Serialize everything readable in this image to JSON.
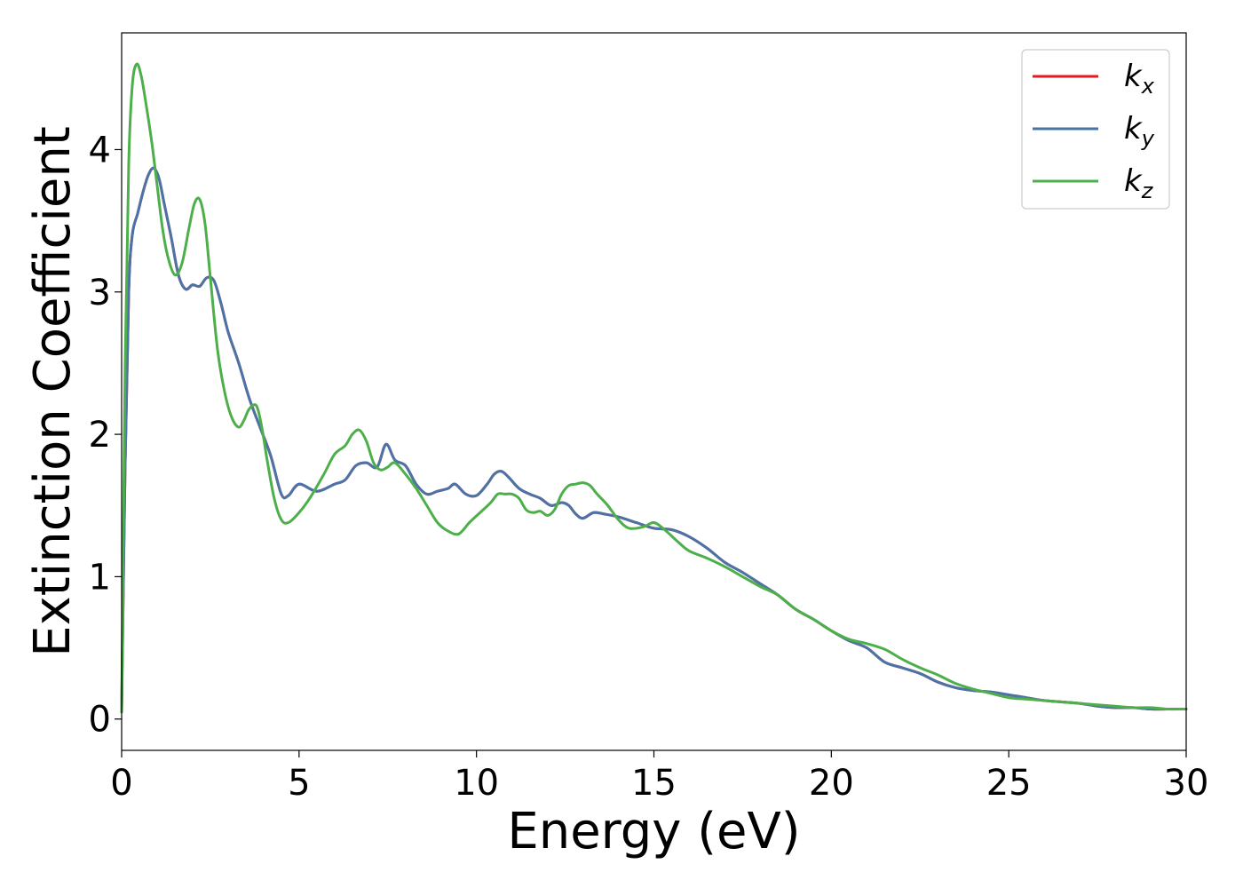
{
  "chart_data": {
    "type": "line",
    "xlabel": "Energy (eV)",
    "ylabel": "Extinction Coefficient",
    "xlim": [
      0,
      30
    ],
    "ylim": [
      -0.22,
      4.82
    ],
    "xticks": [
      0,
      5,
      10,
      15,
      20,
      25,
      30
    ],
    "xtick_labels": [
      "0",
      "5",
      "10",
      "15",
      "20",
      "25",
      "30"
    ],
    "yticks": [
      0,
      1,
      2,
      3,
      4
    ],
    "ytick_labels": [
      "0",
      "1",
      "2",
      "3",
      "4"
    ],
    "grid": false,
    "legend_position": "top-right",
    "series": [
      {
        "name": "k_x",
        "label_base": "k",
        "label_sub": "x",
        "color": "#e41a1c",
        "x": [
          0,
          0.1,
          0.2,
          0.3,
          0.45,
          0.6,
          0.75,
          0.9,
          1.05,
          1.2,
          1.4,
          1.6,
          1.8,
          2.0,
          2.2,
          2.4,
          2.6,
          2.8,
          3.0,
          3.3,
          3.6,
          3.9,
          4.2,
          4.5,
          4.7,
          5.0,
          5.5,
          6.0,
          6.3,
          6.6,
          6.9,
          7.2,
          7.45,
          7.7,
          8.0,
          8.3,
          8.6,
          8.9,
          9.2,
          9.4,
          9.7,
          10.0,
          10.3,
          10.5,
          10.7,
          10.9,
          11.2,
          11.5,
          11.8,
          12.1,
          12.4,
          12.6,
          12.8,
          13.0,
          13.3,
          13.6,
          14.0,
          14.5,
          15.0,
          15.5,
          16.0,
          16.5,
          17.0,
          17.5,
          18.0,
          18.5,
          19.0,
          19.5,
          20.0,
          20.5,
          21.0,
          21.5,
          22.0,
          22.5,
          23.0,
          23.5,
          24.0,
          24.5,
          25.0,
          25.5,
          26.0,
          26.5,
          27.0,
          27.5,
          28.0,
          28.5,
          29.0,
          29.5,
          30.0
        ],
        "values": [
          0.05,
          1.8,
          3.0,
          3.4,
          3.55,
          3.7,
          3.82,
          3.87,
          3.8,
          3.62,
          3.38,
          3.12,
          3.02,
          3.05,
          3.04,
          3.1,
          3.08,
          2.92,
          2.72,
          2.5,
          2.25,
          2.05,
          1.85,
          1.58,
          1.57,
          1.65,
          1.6,
          1.65,
          1.68,
          1.78,
          1.8,
          1.77,
          1.93,
          1.82,
          1.78,
          1.65,
          1.58,
          1.6,
          1.62,
          1.65,
          1.58,
          1.57,
          1.65,
          1.72,
          1.74,
          1.7,
          1.62,
          1.58,
          1.55,
          1.5,
          1.52,
          1.5,
          1.44,
          1.41,
          1.45,
          1.44,
          1.42,
          1.38,
          1.34,
          1.33,
          1.28,
          1.2,
          1.1,
          1.03,
          0.95,
          0.87,
          0.77,
          0.7,
          0.62,
          0.55,
          0.5,
          0.4,
          0.36,
          0.32,
          0.26,
          0.22,
          0.2,
          0.19,
          0.17,
          0.15,
          0.13,
          0.12,
          0.11,
          0.09,
          0.08,
          0.08,
          0.07,
          0.07,
          0.07
        ]
      },
      {
        "name": "k_y",
        "label_base": "k",
        "label_sub": "y",
        "color": "#4a74a8",
        "x": [
          0,
          0.1,
          0.2,
          0.3,
          0.45,
          0.6,
          0.75,
          0.9,
          1.05,
          1.2,
          1.4,
          1.6,
          1.8,
          2.0,
          2.2,
          2.4,
          2.6,
          2.8,
          3.0,
          3.3,
          3.6,
          3.9,
          4.2,
          4.5,
          4.7,
          5.0,
          5.5,
          6.0,
          6.3,
          6.6,
          6.9,
          7.2,
          7.45,
          7.7,
          8.0,
          8.3,
          8.6,
          8.9,
          9.2,
          9.4,
          9.7,
          10.0,
          10.3,
          10.5,
          10.7,
          10.9,
          11.2,
          11.5,
          11.8,
          12.1,
          12.4,
          12.6,
          12.8,
          13.0,
          13.3,
          13.6,
          14.0,
          14.5,
          15.0,
          15.5,
          16.0,
          16.5,
          17.0,
          17.5,
          18.0,
          18.5,
          19.0,
          19.5,
          20.0,
          20.5,
          21.0,
          21.5,
          22.0,
          22.5,
          23.0,
          23.5,
          24.0,
          24.5,
          25.0,
          25.5,
          26.0,
          26.5,
          27.0,
          27.5,
          28.0,
          28.5,
          29.0,
          29.5,
          30.0
        ],
        "values": [
          0.05,
          1.8,
          3.0,
          3.4,
          3.55,
          3.7,
          3.82,
          3.87,
          3.8,
          3.62,
          3.38,
          3.12,
          3.02,
          3.05,
          3.04,
          3.1,
          3.08,
          2.92,
          2.72,
          2.5,
          2.25,
          2.05,
          1.85,
          1.58,
          1.57,
          1.65,
          1.6,
          1.65,
          1.68,
          1.78,
          1.8,
          1.77,
          1.93,
          1.82,
          1.78,
          1.65,
          1.58,
          1.6,
          1.62,
          1.65,
          1.58,
          1.57,
          1.65,
          1.72,
          1.74,
          1.7,
          1.62,
          1.58,
          1.55,
          1.5,
          1.52,
          1.5,
          1.44,
          1.41,
          1.45,
          1.44,
          1.42,
          1.38,
          1.34,
          1.33,
          1.28,
          1.2,
          1.1,
          1.03,
          0.95,
          0.87,
          0.77,
          0.7,
          0.62,
          0.55,
          0.5,
          0.4,
          0.36,
          0.32,
          0.26,
          0.22,
          0.2,
          0.19,
          0.17,
          0.15,
          0.13,
          0.12,
          0.11,
          0.09,
          0.08,
          0.08,
          0.07,
          0.07,
          0.07
        ]
      },
      {
        "name": "k_z",
        "label_base": "k",
        "label_sub": "z",
        "color": "#4daf4a",
        "x": [
          0,
          0.1,
          0.2,
          0.3,
          0.42,
          0.55,
          0.7,
          0.85,
          1.0,
          1.15,
          1.3,
          1.5,
          1.7,
          1.9,
          2.05,
          2.2,
          2.35,
          2.5,
          2.7,
          2.9,
          3.1,
          3.3,
          3.45,
          3.6,
          3.8,
          3.95,
          4.1,
          4.3,
          4.5,
          4.7,
          5.0,
          5.3,
          5.7,
          6.0,
          6.3,
          6.5,
          6.7,
          6.9,
          7.1,
          7.3,
          7.5,
          7.7,
          8.0,
          8.3,
          8.6,
          8.9,
          9.2,
          9.5,
          9.8,
          10.1,
          10.4,
          10.6,
          10.8,
          11.0,
          11.2,
          11.4,
          11.6,
          11.8,
          12.0,
          12.2,
          12.4,
          12.6,
          12.8,
          13.0,
          13.2,
          13.4,
          13.7,
          14.0,
          14.3,
          14.7,
          15.0,
          15.3,
          15.7,
          16.0,
          16.5,
          17.0,
          17.5,
          18.0,
          18.5,
          19.0,
          19.5,
          20.0,
          20.5,
          21.0,
          21.5,
          22.0,
          22.5,
          23.0,
          23.5,
          24.0,
          24.5,
          25.0,
          25.5,
          26.0,
          26.5,
          27.0,
          27.5,
          28.0,
          28.5,
          29.0,
          29.5,
          30.0
        ],
        "values": [
          0.05,
          2.5,
          3.9,
          4.45,
          4.6,
          4.52,
          4.3,
          4.05,
          3.75,
          3.45,
          3.25,
          3.12,
          3.2,
          3.45,
          3.62,
          3.65,
          3.48,
          3.1,
          2.6,
          2.3,
          2.12,
          2.05,
          2.1,
          2.18,
          2.2,
          2.05,
          1.82,
          1.55,
          1.4,
          1.38,
          1.45,
          1.55,
          1.72,
          1.86,
          1.92,
          2.0,
          2.03,
          1.95,
          1.8,
          1.75,
          1.77,
          1.8,
          1.72,
          1.62,
          1.5,
          1.38,
          1.32,
          1.3,
          1.38,
          1.45,
          1.52,
          1.58,
          1.58,
          1.58,
          1.55,
          1.47,
          1.45,
          1.46,
          1.43,
          1.47,
          1.58,
          1.64,
          1.65,
          1.66,
          1.64,
          1.58,
          1.5,
          1.4,
          1.34,
          1.35,
          1.38,
          1.33,
          1.24,
          1.18,
          1.13,
          1.07,
          1.0,
          0.93,
          0.87,
          0.77,
          0.7,
          0.62,
          0.56,
          0.53,
          0.49,
          0.42,
          0.36,
          0.31,
          0.25,
          0.21,
          0.18,
          0.15,
          0.14,
          0.13,
          0.12,
          0.11,
          0.1,
          0.09,
          0.08,
          0.08,
          0.07,
          0.07
        ]
      }
    ]
  }
}
